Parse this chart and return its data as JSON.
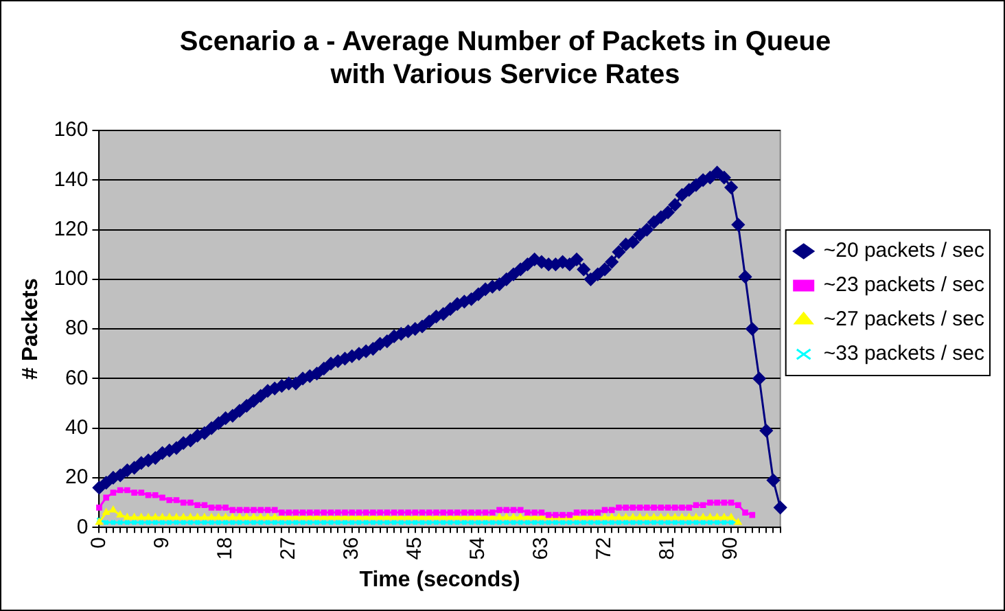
{
  "chart_data": {
    "type": "line",
    "title": "Scenario a - Average Number of Packets in Queue\nwith Various Service Rates",
    "xlabel": "Time (seconds)",
    "ylabel": "# Packets",
    "categories": [
      "0",
      null,
      null,
      null,
      null,
      null,
      null,
      null,
      null,
      "9",
      null,
      null,
      null,
      null,
      null,
      null,
      null,
      null,
      "18",
      null,
      null,
      null,
      null,
      null,
      null,
      null,
      null,
      "27",
      null,
      null,
      null,
      null,
      null,
      null,
      null,
      null,
      "36",
      null,
      null,
      null,
      null,
      null,
      null,
      null,
      null,
      "45",
      null,
      null,
      null,
      null,
      null,
      null,
      null,
      null,
      "54",
      null,
      null,
      null,
      null,
      null,
      null,
      null,
      null,
      "63",
      null,
      null,
      null,
      null,
      null,
      null,
      null,
      null,
      "72",
      null,
      null,
      null,
      null,
      null,
      null,
      null,
      null,
      "81",
      null,
      null,
      null,
      null,
      null,
      null,
      null,
      null,
      "90",
      null,
      null,
      null,
      null,
      null,
      null,
      null
    ],
    "series": [
      {
        "name": "~20 packets / sec",
        "color": "#000080",
        "marker": "diamond",
        "values": [
          16,
          18,
          20,
          21,
          23,
          24,
          26,
          27,
          28,
          30,
          31,
          32,
          34,
          35,
          37,
          38,
          40,
          42,
          44,
          45,
          47,
          49,
          51,
          53,
          55,
          56,
          57,
          58,
          58,
          60,
          61,
          62,
          64,
          66,
          67,
          68,
          69,
          70,
          71,
          72,
          74,
          75,
          77,
          78,
          79,
          80,
          81,
          83,
          85,
          86,
          88,
          90,
          91,
          92,
          94,
          96,
          97,
          98,
          100,
          102,
          104,
          106,
          108,
          107,
          106,
          106,
          107,
          106,
          108,
          104,
          100,
          102,
          104,
          107,
          111,
          114,
          115,
          118,
          120,
          123,
          125,
          127,
          130,
          134,
          136,
          138,
          140,
          141,
          143,
          141,
          137,
          122,
          101,
          80,
          60,
          39,
          19,
          8
        ]
      },
      {
        "name": "~23 packets / sec",
        "color": "#ff00ff",
        "marker": "square",
        "values": [
          8,
          12,
          14,
          15,
          15,
          14,
          14,
          13,
          13,
          12,
          11,
          11,
          10,
          10,
          9,
          9,
          8,
          8,
          8,
          7,
          7,
          7,
          7,
          7,
          7,
          7,
          6,
          6,
          6,
          6,
          6,
          6,
          6,
          6,
          6,
          6,
          6,
          6,
          6,
          6,
          6,
          6,
          6,
          6,
          6,
          6,
          6,
          6,
          6,
          6,
          6,
          6,
          6,
          6,
          6,
          6,
          6,
          7,
          7,
          7,
          7,
          6,
          6,
          6,
          5,
          5,
          5,
          5,
          6,
          6,
          6,
          6,
          7,
          7,
          8,
          8,
          8,
          8,
          8,
          8,
          8,
          8,
          8,
          8,
          8,
          9,
          9,
          10,
          10,
          10,
          10,
          9,
          6,
          5,
          null,
          null,
          null,
          null
        ]
      },
      {
        "name": "~27 packets / sec",
        "color": "#ffff00",
        "marker": "triangle",
        "values": [
          2,
          6,
          7,
          5,
          4,
          4,
          4,
          4,
          4,
          4,
          4,
          4,
          4,
          4,
          4,
          4,
          4,
          4,
          4,
          4,
          4,
          4,
          4,
          4,
          4,
          4,
          4,
          4,
          4,
          4,
          4,
          4,
          4,
          4,
          4,
          4,
          4,
          4,
          4,
          4,
          4,
          4,
          4,
          4,
          4,
          4,
          4,
          4,
          4,
          4,
          4,
          4,
          4,
          4,
          4,
          4,
          4,
          4,
          4,
          4,
          4,
          4,
          4,
          4,
          4,
          4,
          4,
          4,
          4,
          4,
          4,
          4,
          4,
          4,
          4,
          4,
          4,
          4,
          4,
          4,
          4,
          4,
          4,
          4,
          4,
          4,
          4,
          4,
          4,
          4,
          4,
          2,
          null,
          null,
          null,
          null,
          null,
          null
        ]
      },
      {
        "name": "~33 packets / sec",
        "color": "#00ffff",
        "marker": "cross",
        "values": [
          3,
          2,
          2,
          2,
          2,
          2,
          2,
          2,
          2,
          2,
          2,
          2,
          2,
          2,
          2,
          2,
          2,
          2,
          2,
          2,
          2,
          2,
          2,
          2,
          2,
          2,
          2,
          2,
          2,
          2,
          2,
          2,
          2,
          2,
          2,
          2,
          2,
          2,
          2,
          2,
          2,
          2,
          2,
          2,
          2,
          2,
          2,
          2,
          2,
          2,
          2,
          2,
          2,
          2,
          2,
          2,
          2,
          2,
          2,
          2,
          2,
          2,
          2,
          2,
          2,
          2,
          2,
          2,
          2,
          2,
          2,
          2,
          2,
          2,
          2,
          2,
          2,
          2,
          2,
          2,
          2,
          2,
          2,
          2,
          2,
          2,
          2,
          2,
          2,
          2,
          2,
          2,
          null,
          null,
          null,
          null,
          null,
          null
        ]
      }
    ],
    "ylim": [
      0,
      160
    ],
    "yticks": [
      0,
      20,
      40,
      60,
      80,
      100,
      120,
      140,
      160
    ],
    "grid": "y",
    "legend": "right"
  }
}
